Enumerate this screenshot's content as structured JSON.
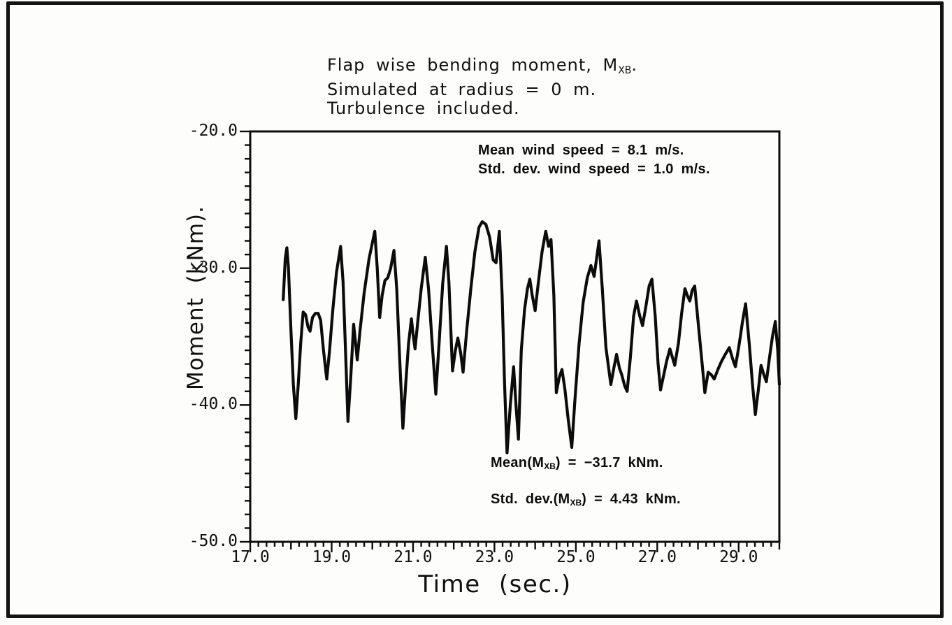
{
  "page": {
    "background": "#fdfdfc",
    "frame_color": "#141414",
    "ink_color": "#0c0c0c"
  },
  "labels": {
    "title1_pre": "Flap wise bending moment, M",
    "title1_sub": "XB",
    "title1_end": ".",
    "title2": "Simulated at radius = 0 m.",
    "title3": "Turbulence included.",
    "ylabel": "Moment (kNm).",
    "xlabel": "Time (sec.)",
    "wind1": "Mean wind speed = 8.1 m/s.",
    "wind2": "Std. dev. wind speed = 1.0 m/s.",
    "mean_pre": "Mean(M",
    "mean_sub": "XB",
    "mean_end": ") = −31.7 kNm.",
    "std_pre": "Std. dev.(M",
    "std_sub": "XB",
    "std_end": ") = 4.43 kNm."
  },
  "chart_data": {
    "type": "line",
    "title": "Flap wise bending moment, M_XB. Simulated at radius = 0 m. Turbulence included.",
    "xlabel": "Time (sec.)",
    "ylabel": "Moment (kNm).",
    "xlim": [
      17.0,
      30.0
    ],
    "ylim": [
      -50.0,
      -20.0
    ],
    "grid": false,
    "x_major_ticks": [
      17.0,
      19.0,
      21.0,
      23.0,
      25.0,
      27.0,
      29.0
    ],
    "x_tick_labels": [
      "17.0",
      "19.0",
      "21.0",
      "23.0",
      "25.0",
      "27.0",
      "29.0"
    ],
    "x_medium_step": 1.0,
    "x_minor_step": 0.2,
    "y_major_ticks": [
      -20.0,
      -30.0,
      -40.0,
      -50.0
    ],
    "y_tick_labels": [
      "-20.0",
      "-30.0",
      "-40.0",
      "-50.0"
    ],
    "y_minor_step": 1.0,
    "annotations": {
      "mean_wind_speed_ms": 8.1,
      "std_dev_wind_speed_ms": 1.0,
      "mean_moment_kNm": -31.7,
      "std_dev_moment_kNm": 4.43,
      "text_lines": [
        "Mean wind speed = 8.1 m/s.",
        "Std. dev. wind speed = 1.0 m/s.",
        "Mean(M_XB) = -31.7 kNm.",
        "Std. dev.(M_XB) = 4.43 kNm."
      ]
    },
    "series": [
      {
        "name": "M_XB",
        "x": [
          17.81,
          17.86,
          17.9,
          17.94,
          18.0,
          18.06,
          18.12,
          18.18,
          18.24,
          18.3,
          18.36,
          18.42,
          18.47,
          18.53,
          18.6,
          18.67,
          18.73,
          18.8,
          18.88,
          18.95,
          19.03,
          19.12,
          19.22,
          19.28,
          19.34,
          19.4,
          19.47,
          19.54,
          19.59,
          19.63,
          19.7,
          19.8,
          19.92,
          20.06,
          20.12,
          20.18,
          20.24,
          20.31,
          20.38,
          20.45,
          20.53,
          20.6,
          20.67,
          20.75,
          20.82,
          20.89,
          20.96,
          21.0,
          21.05,
          21.12,
          21.2,
          21.3,
          21.38,
          21.47,
          21.56,
          21.64,
          21.73,
          21.82,
          21.88,
          21.97,
          22.04,
          22.1,
          22.17,
          22.23,
          22.32,
          22.42,
          22.52,
          22.62,
          22.7,
          22.79,
          22.88,
          22.97,
          23.04,
          23.12,
          23.19,
          23.25,
          23.31,
          23.39,
          23.47,
          23.53,
          23.59,
          23.66,
          23.74,
          23.81,
          23.87,
          23.93,
          24.0,
          24.08,
          24.17,
          24.26,
          24.33,
          24.39,
          24.46,
          24.52,
          24.59,
          24.66,
          24.73,
          24.81,
          24.9,
          24.98,
          25.08,
          25.18,
          25.28,
          25.37,
          25.45,
          25.57,
          25.65,
          25.74,
          25.86,
          25.94,
          26.0,
          26.07,
          26.13,
          26.2,
          26.26,
          26.34,
          26.42,
          26.49,
          26.57,
          26.64,
          26.72,
          26.8,
          26.87,
          26.95,
          27.02,
          27.08,
          27.16,
          27.23,
          27.31,
          27.37,
          27.43,
          27.52,
          27.6,
          27.68,
          27.74,
          27.8,
          27.86,
          27.92,
          28.0,
          28.09,
          28.17,
          28.25,
          28.33,
          28.4,
          28.49,
          28.58,
          28.67,
          28.77,
          28.85,
          28.92,
          29.0,
          29.09,
          29.17,
          29.26,
          29.34,
          29.41,
          29.48,
          29.55,
          29.61,
          29.68,
          29.76,
          29.83,
          29.9,
          29.96,
          30.0
        ],
        "y": [
          -32.3,
          -29.3,
          -28.5,
          -30.0,
          -34.5,
          -38.5,
          -41.0,
          -38.5,
          -35.5,
          -33.2,
          -33.4,
          -34.3,
          -34.6,
          -33.6,
          -33.3,
          -33.3,
          -33.8,
          -36.0,
          -38.1,
          -36.0,
          -33.0,
          -30.3,
          -28.4,
          -31.0,
          -36.0,
          -41.2,
          -38.0,
          -34.1,
          -35.5,
          -36.7,
          -34.5,
          -31.8,
          -29.3,
          -27.3,
          -30.0,
          -33.6,
          -32.0,
          -30.9,
          -30.7,
          -30.0,
          -28.7,
          -31.5,
          -36.5,
          -41.7,
          -38.5,
          -35.5,
          -33.7,
          -34.8,
          -35.9,
          -33.8,
          -31.5,
          -29.2,
          -31.5,
          -35.5,
          -39.2,
          -35.5,
          -31.1,
          -28.4,
          -31.0,
          -37.5,
          -36.0,
          -35.1,
          -36.2,
          -37.6,
          -34.5,
          -31.5,
          -28.8,
          -27.0,
          -26.6,
          -26.8,
          -27.7,
          -29.4,
          -29.6,
          -27.3,
          -32.0,
          -38.5,
          -43.5,
          -40.0,
          -37.2,
          -40.0,
          -42.5,
          -36.0,
          -33.0,
          -31.5,
          -30.8,
          -32.0,
          -33.1,
          -31.0,
          -28.8,
          -27.3,
          -28.4,
          -27.9,
          -32.0,
          -39.1,
          -38.0,
          -37.4,
          -38.8,
          -41.0,
          -43.1,
          -39.5,
          -35.5,
          -32.5,
          -30.7,
          -29.8,
          -30.6,
          -28.0,
          -31.5,
          -35.8,
          -38.5,
          -37.2,
          -36.3,
          -37.3,
          -37.8,
          -38.6,
          -39.0,
          -36.5,
          -33.5,
          -32.4,
          -33.5,
          -34.2,
          -32.8,
          -31.3,
          -30.8,
          -33.5,
          -37.0,
          -38.9,
          -37.8,
          -36.8,
          -35.9,
          -36.5,
          -37.1,
          -35.5,
          -33.3,
          -31.5,
          -32.0,
          -32.4,
          -31.6,
          -31.3,
          -33.8,
          -36.6,
          -39.1,
          -37.6,
          -37.8,
          -38.1,
          -37.4,
          -36.8,
          -36.3,
          -35.8,
          -36.6,
          -37.2,
          -35.8,
          -34.0,
          -32.6,
          -35.5,
          -38.5,
          -40.7,
          -39.0,
          -37.1,
          -37.7,
          -38.3,
          -36.5,
          -35.0,
          -33.9,
          -36.0,
          -38.5
        ]
      }
    ]
  }
}
